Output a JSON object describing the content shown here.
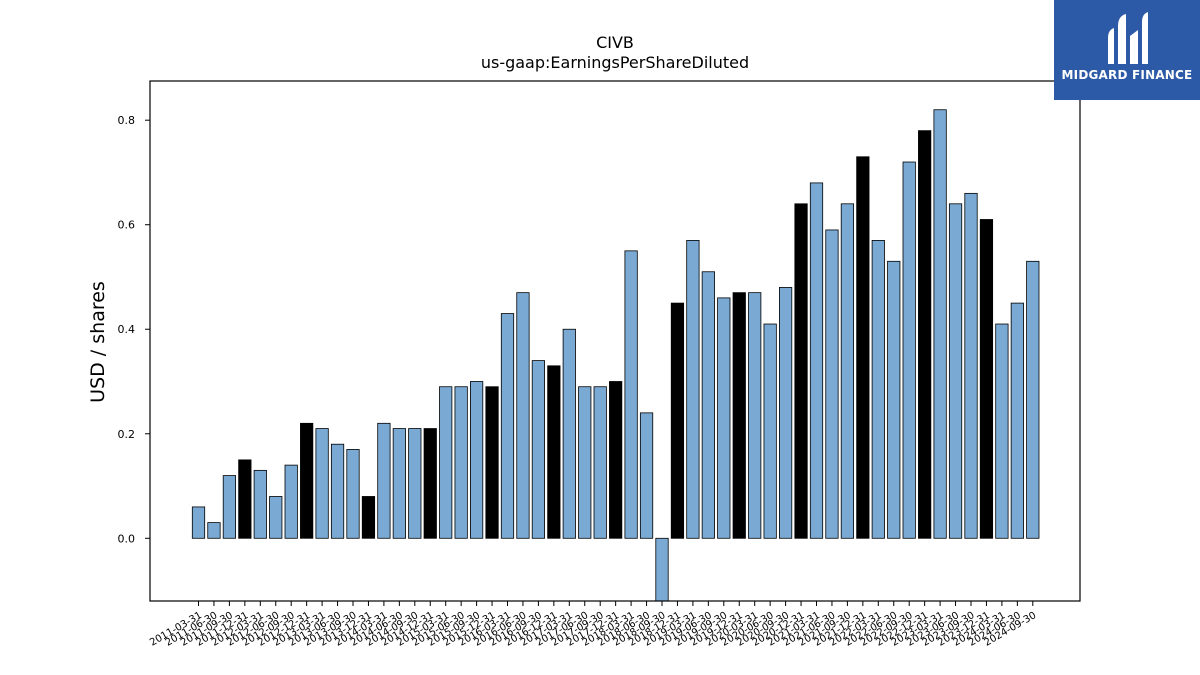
{
  "chart_data": {
    "type": "bar",
    "title": "CIVB",
    "subtitle": "us-gaap:EarningsPerShareDiluted",
    "xlabel": "",
    "ylabel": "USD / shares",
    "ylim": [
      -0.12,
      0.875
    ],
    "yticks": [
      "0.0",
      "0.2",
      "0.4",
      "0.6",
      "0.8"
    ],
    "grid": false,
    "categories": [
      "2011-03-31",
      "2011-06-30",
      "2011-09-30",
      "2011-12-31",
      "2012-03-31",
      "2012-06-30",
      "2012-09-30",
      "2012-12-31",
      "2013-03-31",
      "2013-06-30",
      "2013-09-30",
      "2013-12-31",
      "2014-03-31",
      "2014-06-30",
      "2014-09-30",
      "2014-12-31",
      "2015-03-31",
      "2015-06-30",
      "2015-09-30",
      "2015-12-31",
      "2016-03-31",
      "2016-06-30",
      "2016-09-30",
      "2016-12-31",
      "2017-03-31",
      "2017-06-30",
      "2017-09-30",
      "2017-12-31",
      "2018-03-31",
      "2018-06-30",
      "2018-09-30",
      "2018-12-31",
      "2019-03-31",
      "2019-06-30",
      "2019-09-30",
      "2019-12-31",
      "2020-03-31",
      "2020-06-30",
      "2020-09-30",
      "2020-12-31",
      "2021-03-31",
      "2021-06-30",
      "2021-09-30",
      "2021-12-31",
      "2022-03-31",
      "2022-06-30",
      "2022-09-30",
      "2022-12-31",
      "2023-03-31",
      "2023-06-30",
      "2023-09-30",
      "2023-12-31",
      "2024-03-31",
      "2024-06-30",
      "2024-09-30"
    ],
    "values": [
      0.06,
      0.03,
      0.12,
      0.15,
      0.13,
      0.08,
      0.14,
      0.22,
      0.21,
      0.18,
      0.17,
      0.08,
      0.22,
      0.21,
      0.21,
      0.21,
      0.29,
      0.29,
      0.3,
      0.29,
      0.43,
      0.47,
      0.34,
      0.33,
      0.4,
      0.29,
      0.29,
      0.3,
      0.55,
      0.24,
      -0.12,
      0.45,
      0.57,
      0.51,
      0.46,
      0.47,
      0.47,
      0.41,
      0.48,
      0.64,
      0.68,
      0.59,
      0.64,
      0.73,
      0.57,
      0.53,
      0.72,
      0.78,
      0.82,
      0.64,
      0.66,
      0.61,
      0.41,
      0.45,
      0.53
    ],
    "highlight": [
      false,
      false,
      false,
      true,
      false,
      false,
      false,
      true,
      false,
      false,
      false,
      true,
      false,
      false,
      false,
      true,
      false,
      false,
      false,
      true,
      false,
      false,
      false,
      true,
      false,
      false,
      false,
      true,
      false,
      false,
      false,
      true,
      false,
      false,
      false,
      true,
      false,
      false,
      false,
      true,
      false,
      false,
      false,
      true,
      false,
      false,
      false,
      true,
      false,
      false,
      false,
      true,
      false,
      false,
      false
    ],
    "colors": {
      "bar": "#7aaad4",
      "highlight": "#000000",
      "edge": "#000000"
    }
  },
  "logo": {
    "text": "MIDGARD FINANCE",
    "bg": "#2d5aa6"
  }
}
